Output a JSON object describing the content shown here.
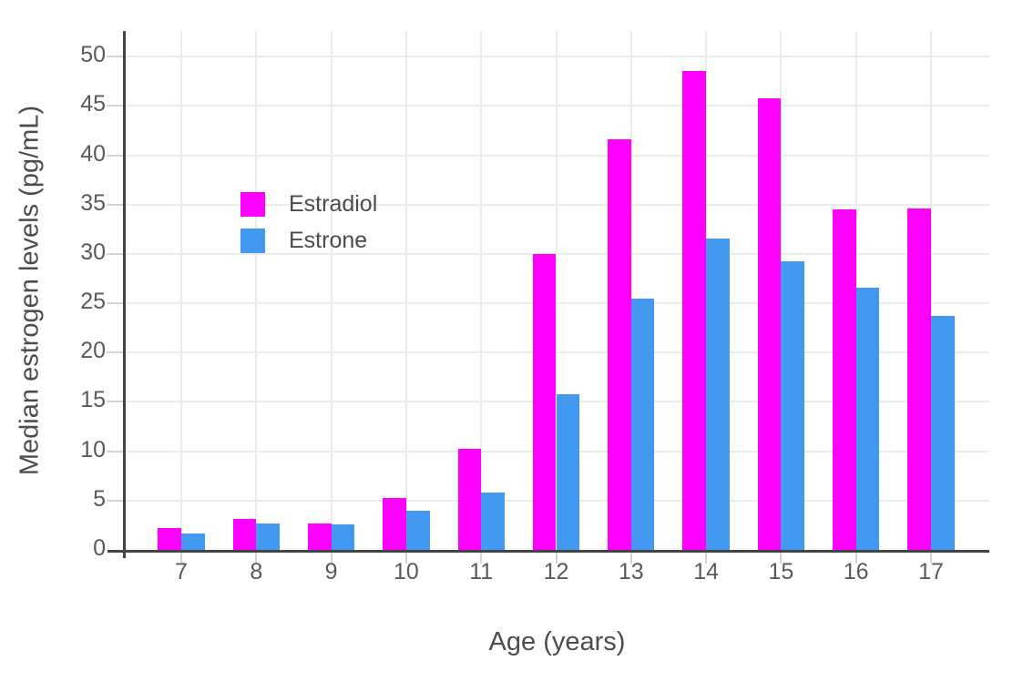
{
  "chart_data": {
    "type": "bar",
    "title": "",
    "xlabel": "Age (years)",
    "ylabel": "Median estrogen levels (pg/mL)",
    "categories": [
      "7",
      "8",
      "9",
      "10",
      "11",
      "12",
      "13",
      "14",
      "15",
      "16",
      "17"
    ],
    "series": [
      {
        "name": "Estradiol",
        "color": "#ff00ff",
        "values": [
          2.2,
          3.1,
          2.7,
          5.3,
          10.2,
          30.0,
          41.6,
          48.5,
          45.8,
          34.5,
          34.6
        ]
      },
      {
        "name": "Estrone",
        "color": "#4398f0",
        "values": [
          1.7,
          2.7,
          2.6,
          4.0,
          5.8,
          15.8,
          25.5,
          31.6,
          29.3,
          26.6,
          23.7
        ]
      }
    ],
    "ylim": [
      0,
      52.5
    ],
    "yticks": [
      0,
      5,
      10,
      15,
      20,
      25,
      30,
      35,
      40,
      45,
      50
    ],
    "grid": "on",
    "legend_position": "inside-upper-left"
  },
  "colors": {
    "background": "#ffffff",
    "axis_line": "#444444",
    "gridline": "#ececec",
    "tick_mark": "#d5d5d5",
    "tick_label_text": "#5a5a5a",
    "axis_title_text": "#4c4c4c"
  }
}
